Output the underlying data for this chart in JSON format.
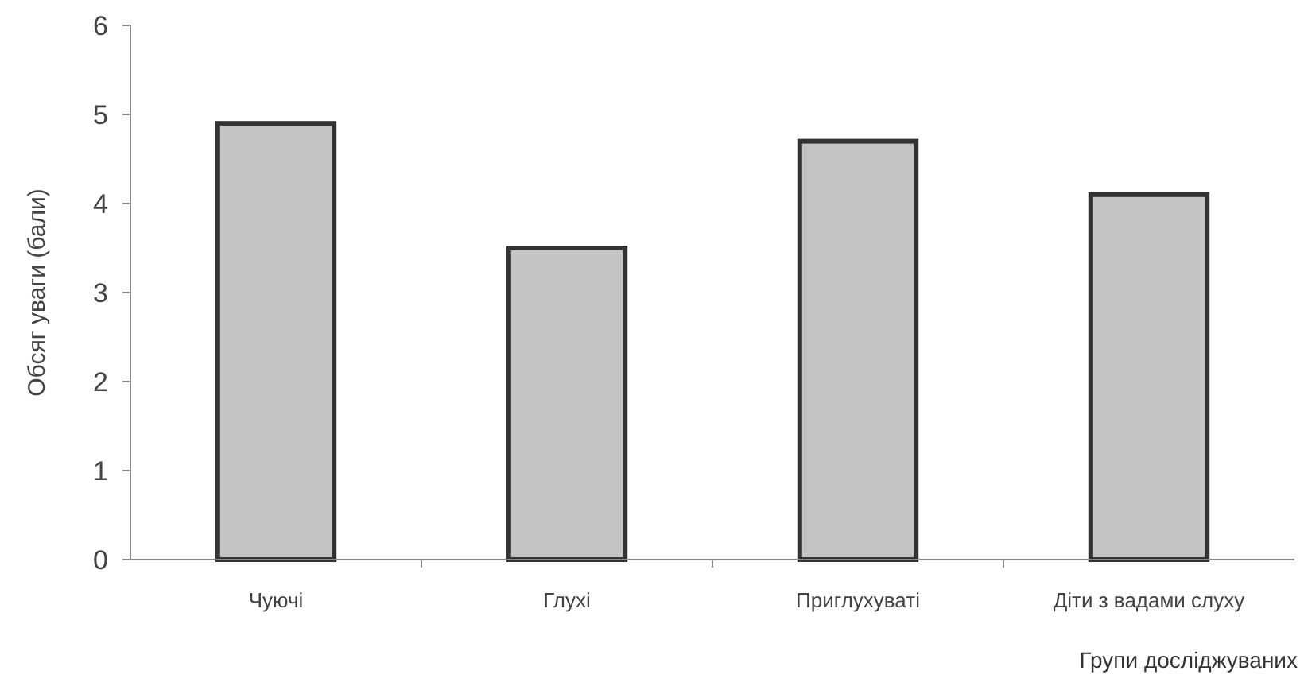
{
  "chart_data": {
    "type": "bar",
    "xlabel": "Групи досліджуваних",
    "ylabel": "Обсяг уваги (бали)",
    "categories": [
      "Чуючі",
      "Глухі",
      "Приглухуваті",
      "Діти з вадами слуху"
    ],
    "values": [
      4.9,
      3.5,
      4.7,
      4.1
    ],
    "color": "#c4c4c4",
    "ylim": [
      0,
      6
    ],
    "yticks": [
      0,
      1,
      2,
      3,
      4,
      5,
      6
    ],
    "grid": false
  }
}
